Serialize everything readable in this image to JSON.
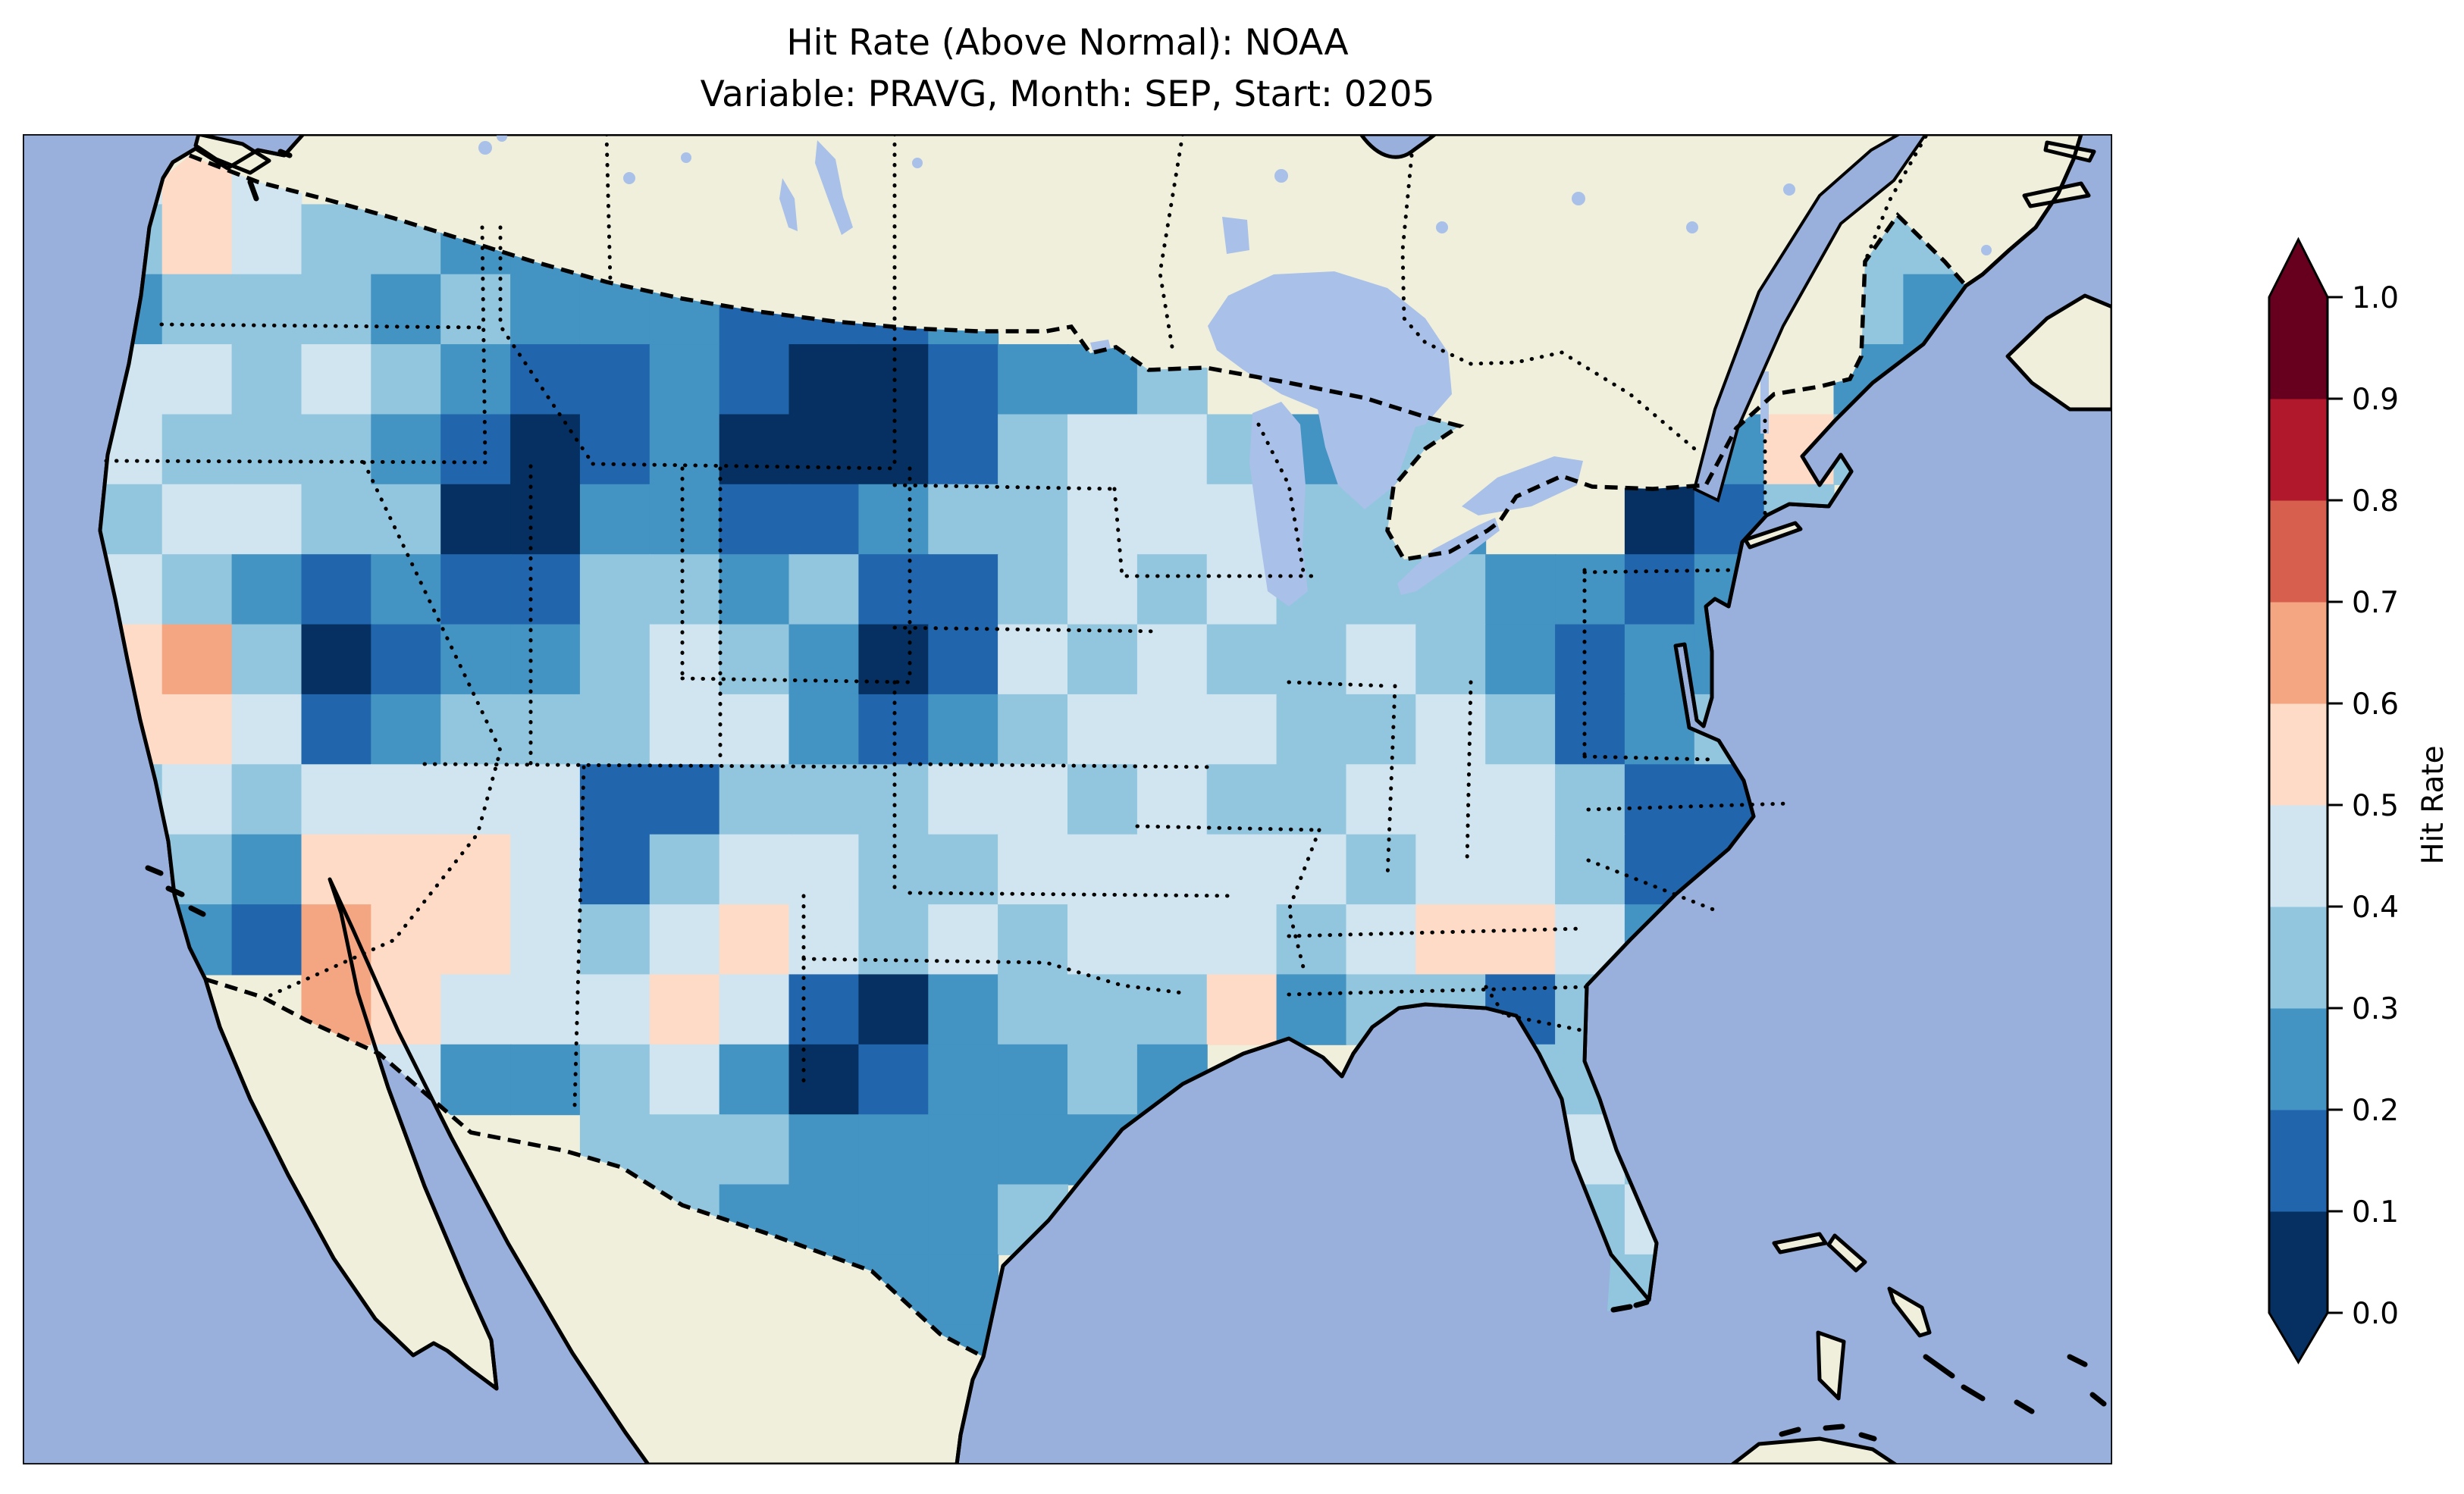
{
  "figure": {
    "title_line1": "Hit Rate (Above Normal): NOAA",
    "title_line2": "Variable: PRAVG, Month: SEP, Start: 0205"
  },
  "colorbar": {
    "label": "Hit Rate",
    "ticks": [
      "0.0",
      "0.1",
      "0.2",
      "0.3",
      "0.4",
      "0.5",
      "0.6",
      "0.7",
      "0.8",
      "0.9",
      "1.0"
    ],
    "bin_colors_low_to_high": [
      "#053061",
      "#2166ac",
      "#4393c3",
      "#92c5de",
      "#d1e5f0",
      "#fddbc7",
      "#f4a582",
      "#d6604d",
      "#b2182b",
      "#67001f"
    ],
    "extend": "both",
    "extend_low_color": "#053061",
    "extend_high_color": "#67001f"
  },
  "map": {
    "ocean_color": "#9ab0dc",
    "land_color": "#efefdb",
    "lake_color": "#a9c0e8",
    "coastline_color": "#000000",
    "country_border_style": "dashed",
    "state_border_style": "dotted",
    "frame_color": "#000000"
  },
  "chart_data": {
    "type": "heatmap",
    "title": "Hit Rate (Above Normal): NOAA",
    "subtitle": "Variable: PRAVG, Month: SEP, Start: 0205",
    "source": "NOAA",
    "variable": "PRAVG",
    "month": "SEP",
    "start": "0205",
    "value_name": "Hit Rate",
    "vmin": 0.0,
    "vmax": 1.0,
    "bin_size": 0.1,
    "colormap": "RdBu_r, 10 discrete bins, extended arrows both ends",
    "region": "Continental United States (CONUS), ~1-degree cells",
    "legend_position": "right vertical colorbar",
    "grid": {
      "cols": 30,
      "rows": 19,
      "cell_encoding": "each char = hit-rate bin index (value = digit/10 to digit/10+0.1); '.' = outside CONUS (no data)",
      "rows_data": [
        ".454..........................",
        ".35433222.................33..",
        ".2333232221112............32..",
        ".4434321121001223..23.....22..",
        ".43332101200013443233..1253...",
        ".34433002211233444332..013....",
        ".432121133231134343332212.....",
        ".563012234320143433432122.....",
        ".554123334421234443343123.....",
        ".343444411333443433444311.....",
        ".432555413443344444344311.....",
        "..21655434543434443455421.....",
        "....65444541023335233133......",
        ".....422342012232....33.......",
        "........33322222......43......",
        ".........322223.......34......",
        "...........222........33......",
        "............12................",
        ".............................."
      ]
    },
    "notable_features": [
      "Most of CONUS in 0.2-0.5 blue bins (below-0.5 hit rate dominates)",
      "Dark navy (0.0-0.1) blobs: eastern Montana / western North Dakota, central Nevada, northern Utah / SE Idaho, SE Nebraska / NE Kansas, central Texas, upstate New York",
      "Warm (0.5-0.7) patches: northern California coast/valley, central Arizona, west Texas, Kentucky/Tennessee area, Cape Cod cell",
      "Strong 0.1-0.2 blue band along coastal Virginia / North Carolina"
    ]
  }
}
